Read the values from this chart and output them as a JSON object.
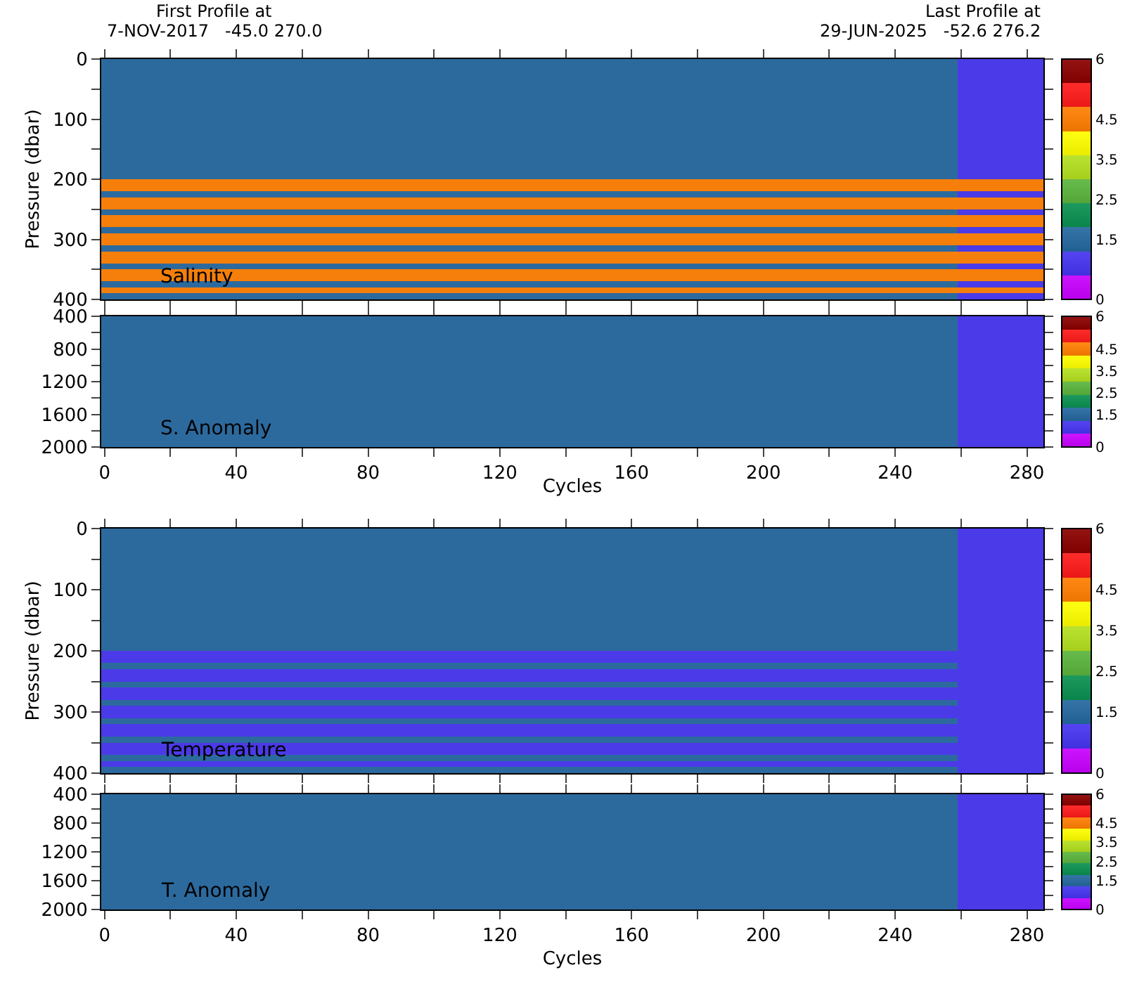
{
  "chart_data": [
    {
      "type": "heatmap",
      "ylabel": "Pressure (dbar)",
      "annotations": [
        "Salinity",
        "First Profile at",
        "7-NOV-2017   -45.0 270.0",
        "Last Profile at",
        "29-JUN-2025   -52.6 276.2"
      ],
      "x": [
        12,
        38,
        64,
        90,
        116,
        142,
        168,
        194,
        220,
        246,
        272
      ],
      "y": [
        5,
        15,
        25,
        35,
        45,
        55,
        65,
        75,
        85,
        95,
        105,
        115,
        125,
        135,
        145,
        155,
        165,
        175,
        185,
        195,
        205,
        215,
        225,
        235,
        245,
        255,
        265,
        275,
        285,
        295,
        305,
        315,
        325,
        335,
        345,
        355,
        365,
        375,
        385,
        395
      ],
      "cells": [
        [
          1.5,
          1.5,
          1.5,
          1.5,
          1.5,
          1.5,
          1.5,
          1.5,
          1.5,
          1.5,
          0.9
        ],
        [
          1.5,
          1.5,
          1.5,
          1.5,
          1.5,
          1.5,
          1.5,
          1.5,
          1.5,
          1.5,
          0.9
        ],
        [
          1.5,
          1.5,
          1.5,
          1.5,
          1.5,
          1.5,
          1.5,
          1.5,
          1.5,
          1.5,
          0.9
        ],
        [
          1.5,
          1.5,
          1.5,
          1.5,
          1.5,
          1.5,
          1.5,
          1.5,
          1.5,
          1.5,
          0.9
        ],
        [
          1.5,
          1.5,
          1.5,
          1.5,
          1.5,
          1.5,
          1.5,
          1.5,
          1.5,
          1.5,
          0.9
        ],
        [
          1.5,
          1.5,
          1.5,
          1.5,
          1.5,
          1.5,
          1.5,
          1.5,
          1.5,
          1.5,
          0.9
        ],
        [
          1.5,
          1.5,
          1.5,
          1.5,
          1.5,
          1.5,
          1.5,
          1.5,
          1.5,
          1.5,
          0.9
        ],
        [
          1.5,
          1.5,
          1.5,
          1.5,
          1.5,
          1.5,
          1.5,
          1.5,
          1.5,
          1.5,
          0.9
        ],
        [
          1.5,
          1.5,
          1.5,
          1.5,
          1.5,
          1.5,
          1.5,
          1.5,
          1.5,
          1.5,
          0.9
        ],
        [
          1.5,
          1.5,
          1.5,
          1.5,
          1.5,
          1.5,
          1.5,
          1.5,
          1.5,
          1.5,
          0.9
        ],
        [
          1.5,
          1.5,
          1.5,
          1.5,
          1.5,
          1.5,
          1.5,
          1.5,
          1.5,
          1.5,
          0.9
        ],
        [
          1.5,
          1.5,
          1.5,
          1.5,
          1.5,
          1.5,
          1.5,
          1.5,
          1.5,
          1.5,
          0.9
        ],
        [
          1.5,
          1.5,
          1.5,
          1.5,
          1.5,
          1.5,
          1.5,
          1.5,
          1.5,
          1.5,
          0.9
        ],
        [
          1.5,
          1.5,
          1.5,
          1.5,
          1.5,
          1.5,
          1.5,
          1.5,
          1.5,
          1.5,
          0.9
        ],
        [
          1.5,
          1.5,
          1.5,
          1.5,
          1.5,
          1.5,
          1.5,
          1.5,
          1.5,
          1.5,
          0.9
        ],
        [
          1.5,
          1.5,
          1.5,
          1.5,
          1.5,
          1.5,
          1.5,
          1.5,
          1.5,
          1.5,
          0.9
        ],
        [
          1.5,
          1.5,
          1.5,
          1.5,
          1.5,
          1.5,
          1.5,
          1.5,
          1.5,
          1.5,
          0.9
        ],
        [
          1.5,
          1.5,
          1.5,
          1.5,
          1.5,
          1.5,
          1.5,
          1.5,
          1.5,
          1.5,
          0.9
        ],
        [
          1.5,
          1.5,
          1.5,
          1.5,
          1.5,
          1.5,
          1.5,
          1.5,
          1.5,
          1.5,
          0.9
        ],
        [
          1.5,
          1.5,
          1.5,
          1.5,
          1.5,
          1.5,
          1.5,
          1.5,
          1.5,
          1.5,
          0.9
        ],
        [
          4.5,
          4.5,
          4.5,
          4.5,
          4.5,
          4.5,
          4.5,
          4.5,
          4.5,
          4.5,
          4.5
        ],
        [
          4.5,
          4.5,
          4.5,
          4.5,
          4.5,
          4.5,
          4.5,
          4.5,
          4.5,
          4.5,
          4.5
        ],
        [
          1.5,
          1.5,
          1.5,
          1.5,
          1.5,
          1.5,
          1.5,
          1.5,
          1.5,
          1.5,
          0.9
        ],
        [
          4.5,
          4.5,
          4.5,
          4.5,
          4.5,
          4.5,
          4.5,
          4.5,
          4.5,
          4.5,
          4.5
        ],
        [
          4.5,
          4.5,
          4.5,
          4.5,
          4.5,
          4.5,
          4.5,
          4.5,
          4.5,
          4.5,
          4.5
        ],
        [
          1.5,
          1.5,
          1.5,
          1.5,
          1.5,
          1.5,
          1.5,
          1.5,
          1.5,
          1.5,
          0.9
        ],
        [
          4.5,
          4.5,
          4.5,
          4.5,
          4.5,
          4.5,
          4.5,
          4.5,
          4.5,
          4.5,
          4.5
        ],
        [
          4.5,
          4.5,
          4.5,
          4.5,
          4.5,
          4.5,
          4.5,
          4.5,
          4.5,
          4.5,
          4.5
        ],
        [
          1.5,
          1.5,
          1.5,
          1.5,
          1.5,
          1.5,
          1.5,
          1.5,
          1.5,
          1.5,
          0.9
        ],
        [
          4.5,
          4.5,
          4.5,
          4.5,
          4.5,
          4.5,
          4.5,
          4.5,
          4.5,
          4.5,
          4.5
        ],
        [
          4.5,
          4.5,
          4.5,
          4.5,
          4.5,
          4.5,
          4.5,
          4.5,
          4.5,
          4.5,
          4.5
        ],
        [
          1.5,
          1.5,
          1.5,
          1.5,
          1.5,
          1.5,
          1.5,
          1.5,
          1.5,
          1.5,
          0.9
        ],
        [
          4.5,
          4.5,
          4.5,
          4.5,
          4.5,
          4.5,
          4.5,
          4.5,
          4.5,
          4.5,
          4.5
        ],
        [
          4.5,
          4.5,
          4.5,
          4.5,
          4.5,
          4.5,
          4.5,
          4.5,
          4.5,
          4.5,
          4.5
        ],
        [
          1.5,
          1.5,
          1.5,
          1.5,
          1.5,
          1.5,
          1.5,
          1.5,
          1.5,
          1.5,
          0.9
        ],
        [
          4.5,
          4.5,
          4.5,
          4.5,
          4.5,
          4.5,
          4.5,
          4.5,
          4.5,
          4.5,
          4.5
        ],
        [
          4.5,
          4.5,
          4.5,
          4.5,
          4.5,
          4.5,
          4.5,
          4.5,
          4.5,
          4.5,
          4.5
        ],
        [
          1.5,
          1.5,
          1.5,
          1.5,
          1.5,
          1.5,
          1.5,
          1.5,
          1.5,
          1.5,
          0.9
        ],
        [
          4.5,
          4.5,
          4.5,
          4.5,
          4.5,
          4.5,
          4.5,
          4.5,
          4.5,
          4.5,
          4.5
        ],
        [
          1.5,
          1.5,
          1.5,
          1.5,
          1.5,
          1.5,
          1.5,
          1.5,
          1.5,
          1.5,
          0.9
        ]
      ],
      "colors": [
        "#c800ff",
        "#4634f0",
        "#2468a0",
        "#0a9050",
        "#5ab43c",
        "#b4e01e",
        "#ffff00",
        "#ff7f00",
        "#ff1a1a",
        "#8b0000"
      ],
      "clim": [
        0,
        6
      ],
      "cticks": [
        0,
        1.5,
        2.5,
        3.5,
        4.5,
        6
      ],
      "xlim": [
        -1,
        285
      ],
      "xticks": [
        0,
        {
          "value": 20,
          "label": null
        },
        40,
        {
          "value": 60,
          "label": null
        },
        80,
        {
          "value": 100,
          "label": null
        },
        120,
        {
          "value": 140,
          "label": null
        },
        160,
        {
          "value": 180,
          "label": null
        },
        200,
        {
          "value": 220,
          "label": null
        },
        240,
        {
          "value": 260,
          "label": null
        },
        280
      ],
      "ylim": [
        400,
        0
      ],
      "yticks": [
        0,
        {
          "value": 50,
          "label": null
        },
        100,
        {
          "value": 150,
          "label": null
        },
        200,
        {
          "value": 250,
          "label": null
        },
        300,
        {
          "value": 350,
          "label": null
        },
        400
      ],
      "tick_labels": "y"
    },
    {
      "type": "heatmap",
      "xlabel": "Cycles",
      "annotations": [
        "S. Anomaly"
      ],
      "x": [
        12,
        38,
        64,
        90,
        116,
        142,
        168,
        194,
        220,
        246,
        272
      ],
      "y": [
        450,
        550,
        650,
        750,
        850,
        950,
        1050,
        1150,
        1250,
        1350,
        1450,
        1550,
        1650,
        1750,
        1850,
        1950
      ],
      "cells": [
        [
          1.5,
          1.5,
          1.5,
          1.5,
          1.5,
          1.5,
          1.5,
          1.5,
          1.5,
          1.5,
          0.9
        ],
        [
          1.5,
          1.5,
          1.5,
          1.5,
          1.5,
          1.5,
          1.5,
          1.5,
          1.5,
          1.5,
          0.9
        ],
        [
          1.5,
          1.5,
          1.5,
          1.5,
          1.5,
          1.5,
          1.5,
          1.5,
          1.5,
          1.5,
          0.9
        ],
        [
          1.5,
          1.5,
          1.5,
          1.5,
          1.5,
          1.5,
          1.5,
          1.5,
          1.5,
          1.5,
          0.9
        ],
        [
          1.5,
          1.5,
          1.5,
          1.5,
          1.5,
          1.5,
          1.5,
          1.5,
          1.5,
          1.5,
          0.9
        ],
        [
          1.5,
          1.5,
          1.5,
          1.5,
          1.5,
          1.5,
          1.5,
          1.5,
          1.5,
          1.5,
          0.9
        ],
        [
          1.5,
          1.5,
          1.5,
          1.5,
          1.5,
          1.5,
          1.5,
          1.5,
          1.5,
          1.5,
          0.9
        ],
        [
          1.5,
          1.5,
          1.5,
          1.5,
          1.5,
          1.5,
          1.5,
          1.5,
          1.5,
          1.5,
          0.9
        ],
        [
          1.5,
          1.5,
          1.5,
          1.5,
          1.5,
          1.5,
          1.5,
          1.5,
          1.5,
          1.5,
          0.9
        ],
        [
          1.5,
          1.5,
          1.5,
          1.5,
          1.5,
          1.5,
          1.5,
          1.5,
          1.5,
          1.5,
          0.9
        ],
        [
          1.5,
          1.5,
          1.5,
          1.5,
          1.5,
          1.5,
          1.5,
          1.5,
          1.5,
          1.5,
          0.9
        ],
        [
          1.5,
          1.5,
          1.5,
          1.5,
          1.5,
          1.5,
          1.5,
          1.5,
          1.5,
          1.5,
          0.9
        ],
        [
          1.5,
          1.5,
          1.5,
          1.5,
          1.5,
          1.5,
          1.5,
          1.5,
          1.5,
          1.5,
          0.9
        ],
        [
          1.5,
          1.5,
          1.5,
          1.5,
          1.5,
          1.5,
          1.5,
          1.5,
          1.5,
          1.5,
          0.9
        ],
        [
          1.5,
          1.5,
          1.5,
          1.5,
          1.5,
          1.5,
          1.5,
          1.5,
          1.5,
          1.5,
          0.9
        ],
        [
          1.5,
          1.5,
          1.5,
          1.5,
          1.5,
          1.5,
          1.5,
          1.5,
          1.5,
          1.5,
          0.9
        ]
      ],
      "colors": [
        "#c800ff",
        "#4634f0",
        "#2468a0",
        "#0a9050",
        "#5ab43c",
        "#b4e01e",
        "#ffff00",
        "#ff7f00",
        "#ff1a1a",
        "#8b0000"
      ],
      "clim": [
        0,
        6
      ],
      "cticks": [
        0,
        1.5,
        2.5,
        3.5,
        4.5,
        6
      ],
      "xlim": [
        -1,
        285
      ],
      "xticks": [
        0,
        {
          "value": 20,
          "label": null
        },
        40,
        {
          "value": 60,
          "label": null
        },
        80,
        {
          "value": 100,
          "label": null
        },
        120,
        {
          "value": 140,
          "label": null
        },
        160,
        {
          "value": 180,
          "label": null
        },
        200,
        {
          "value": 220,
          "label": null
        },
        240,
        {
          "value": 260,
          "label": null
        },
        280
      ],
      "ylim": [
        2000,
        400
      ],
      "yticks": [
        400,
        {
          "value": 600,
          "label": null
        },
        800,
        {
          "value": 1000,
          "label": null
        },
        1200,
        {
          "value": 1400,
          "label": null
        },
        1600,
        {
          "value": 1800,
          "label": null
        },
        2000
      ]
    },
    {
      "type": "heatmap",
      "ylabel": "Pressure (dbar)",
      "annotations": [
        "Temperature"
      ],
      "x": [
        12,
        38,
        64,
        90,
        116,
        142,
        168,
        194,
        220,
        246,
        272
      ],
      "y": [
        5,
        15,
        25,
        35,
        45,
        55,
        65,
        75,
        85,
        95,
        105,
        115,
        125,
        135,
        145,
        155,
        165,
        175,
        185,
        195,
        205,
        215,
        225,
        235,
        245,
        255,
        265,
        275,
        285,
        295,
        305,
        315,
        325,
        335,
        345,
        355,
        365,
        375,
        385,
        395
      ],
      "cells": [
        [
          1.5,
          1.5,
          1.5,
          1.5,
          1.5,
          1.5,
          1.5,
          1.5,
          1.5,
          1.5,
          0.9
        ],
        [
          1.5,
          1.5,
          1.5,
          1.5,
          1.5,
          1.5,
          1.5,
          1.5,
          1.5,
          1.5,
          0.9
        ],
        [
          1.5,
          1.5,
          1.5,
          1.5,
          1.5,
          1.5,
          1.5,
          1.5,
          1.5,
          1.5,
          0.9
        ],
        [
          1.5,
          1.5,
          1.5,
          1.5,
          1.5,
          1.5,
          1.5,
          1.5,
          1.5,
          1.5,
          0.9
        ],
        [
          1.5,
          1.5,
          1.5,
          1.5,
          1.5,
          1.5,
          1.5,
          1.5,
          1.5,
          1.5,
          0.9
        ],
        [
          1.5,
          1.5,
          1.5,
          1.5,
          1.5,
          1.5,
          1.5,
          1.5,
          1.5,
          1.5,
          0.9
        ],
        [
          1.5,
          1.5,
          1.5,
          1.5,
          1.5,
          1.5,
          1.5,
          1.5,
          1.5,
          1.5,
          0.9
        ],
        [
          1.5,
          1.5,
          1.5,
          1.5,
          1.5,
          1.5,
          1.5,
          1.5,
          1.5,
          1.5,
          0.9
        ],
        [
          1.5,
          1.5,
          1.5,
          1.5,
          1.5,
          1.5,
          1.5,
          1.5,
          1.5,
          1.5,
          0.9
        ],
        [
          1.5,
          1.5,
          1.5,
          1.5,
          1.5,
          1.5,
          1.5,
          1.5,
          1.5,
          1.5,
          0.9
        ],
        [
          1.5,
          1.5,
          1.5,
          1.5,
          1.5,
          1.5,
          1.5,
          1.5,
          1.5,
          1.5,
          0.9
        ],
        [
          1.5,
          1.5,
          1.5,
          1.5,
          1.5,
          1.5,
          1.5,
          1.5,
          1.5,
          1.5,
          0.9
        ],
        [
          1.5,
          1.5,
          1.5,
          1.5,
          1.5,
          1.5,
          1.5,
          1.5,
          1.5,
          1.5,
          0.9
        ],
        [
          1.5,
          1.5,
          1.5,
          1.5,
          1.5,
          1.5,
          1.5,
          1.5,
          1.5,
          1.5,
          0.9
        ],
        [
          1.5,
          1.5,
          1.5,
          1.5,
          1.5,
          1.5,
          1.5,
          1.5,
          1.5,
          1.5,
          0.9
        ],
        [
          1.5,
          1.5,
          1.5,
          1.5,
          1.5,
          1.5,
          1.5,
          1.5,
          1.5,
          1.5,
          0.9
        ],
        [
          1.5,
          1.5,
          1.5,
          1.5,
          1.5,
          1.5,
          1.5,
          1.5,
          1.5,
          1.5,
          0.9
        ],
        [
          1.5,
          1.5,
          1.5,
          1.5,
          1.5,
          1.5,
          1.5,
          1.5,
          1.5,
          1.5,
          0.9
        ],
        [
          1.5,
          1.5,
          1.5,
          1.5,
          1.5,
          1.5,
          1.5,
          1.5,
          1.5,
          1.5,
          0.9
        ],
        [
          1.5,
          1.5,
          1.5,
          1.5,
          1.5,
          1.5,
          1.5,
          1.5,
          1.5,
          1.5,
          0.9
        ],
        [
          0.9,
          0.9,
          0.9,
          0.9,
          0.9,
          0.9,
          0.9,
          0.9,
          0.9,
          0.9,
          0.9
        ],
        [
          0.9,
          0.9,
          0.9,
          0.9,
          0.9,
          0.9,
          0.9,
          0.9,
          0.9,
          0.9,
          0.9
        ],
        [
          1.5,
          1.5,
          1.5,
          1.5,
          1.5,
          1.5,
          1.5,
          1.5,
          1.5,
          1.5,
          0.9
        ],
        [
          0.9,
          0.9,
          0.9,
          0.9,
          0.9,
          0.9,
          0.9,
          0.9,
          0.9,
          0.9,
          0.9
        ],
        [
          0.9,
          0.9,
          0.9,
          0.9,
          0.9,
          0.9,
          0.9,
          0.9,
          0.9,
          0.9,
          0.9
        ],
        [
          1.5,
          1.5,
          1.5,
          1.5,
          1.5,
          1.5,
          1.5,
          1.5,
          1.5,
          1.5,
          0.9
        ],
        [
          0.9,
          0.9,
          0.9,
          0.9,
          0.9,
          0.9,
          0.9,
          0.9,
          0.9,
          0.9,
          0.9
        ],
        [
          0.9,
          0.9,
          0.9,
          0.9,
          0.9,
          0.9,
          0.9,
          0.9,
          0.9,
          0.9,
          0.9
        ],
        [
          1.5,
          1.5,
          1.5,
          1.5,
          1.5,
          1.5,
          1.5,
          1.5,
          1.5,
          1.5,
          0.9
        ],
        [
          0.9,
          0.9,
          0.9,
          0.9,
          0.9,
          0.9,
          0.9,
          0.9,
          0.9,
          0.9,
          0.9
        ],
        [
          0.9,
          0.9,
          0.9,
          0.9,
          0.9,
          0.9,
          0.9,
          0.9,
          0.9,
          0.9,
          0.9
        ],
        [
          1.5,
          1.5,
          1.5,
          1.5,
          1.5,
          1.5,
          1.5,
          1.5,
          1.5,
          1.5,
          0.9
        ],
        [
          0.9,
          0.9,
          0.9,
          0.9,
          0.9,
          0.9,
          0.9,
          0.9,
          0.9,
          0.9,
          0.9
        ],
        [
          0.9,
          0.9,
          0.9,
          0.9,
          0.9,
          0.9,
          0.9,
          0.9,
          0.9,
          0.9,
          0.9
        ],
        [
          1.5,
          1.5,
          1.5,
          1.5,
          1.5,
          1.5,
          1.5,
          1.5,
          1.5,
          1.5,
          0.9
        ],
        [
          0.9,
          0.9,
          0.9,
          0.9,
          0.9,
          0.9,
          0.9,
          0.9,
          0.9,
          0.9,
          0.9
        ],
        [
          0.9,
          0.9,
          0.9,
          0.9,
          0.9,
          0.9,
          0.9,
          0.9,
          0.9,
          0.9,
          0.9
        ],
        [
          1.5,
          1.5,
          1.5,
          1.5,
          1.5,
          1.5,
          1.5,
          1.5,
          1.5,
          1.5,
          0.9
        ],
        [
          0.9,
          0.9,
          0.9,
          0.9,
          0.9,
          0.9,
          0.9,
          0.9,
          0.9,
          0.9,
          0.9
        ],
        [
          1.5,
          1.5,
          1.5,
          1.5,
          1.5,
          1.5,
          1.5,
          1.5,
          1.5,
          1.5,
          0.9
        ]
      ],
      "colors": [
        "#c800ff",
        "#4634f0",
        "#2468a0",
        "#0a9050",
        "#5ab43c",
        "#b4e01e",
        "#ffff00",
        "#ff7f00",
        "#ff1a1a",
        "#8b0000"
      ],
      "clim": [
        0,
        6
      ],
      "cticks": [
        0,
        1.5,
        2.5,
        3.5,
        4.5,
        6
      ],
      "xlim": [
        -1,
        285
      ],
      "xticks": [
        0,
        {
          "value": 20,
          "label": null
        },
        40,
        {
          "value": 60,
          "label": null
        },
        80,
        {
          "value": 100,
          "label": null
        },
        120,
        {
          "value": 140,
          "label": null
        },
        160,
        {
          "value": 180,
          "label": null
        },
        200,
        {
          "value": 220,
          "label": null
        },
        240,
        {
          "value": 260,
          "label": null
        },
        280
      ],
      "ylim": [
        400,
        0
      ],
      "yticks": [
        0,
        {
          "value": 50,
          "label": null
        },
        100,
        {
          "value": 150,
          "label": null
        },
        200,
        {
          "value": 250,
          "label": null
        },
        300,
        {
          "value": 350,
          "label": null
        },
        400
      ],
      "tick_labels": "y"
    },
    {
      "type": "heatmap",
      "xlabel": "Cycles",
      "annotations": [
        "T. Anomaly"
      ],
      "x": [
        12,
        38,
        64,
        90,
        116,
        142,
        168,
        194,
        220,
        246,
        272
      ],
      "y": [
        450,
        550,
        650,
        750,
        850,
        950,
        1050,
        1150,
        1250,
        1350,
        1450,
        1550,
        1650,
        1750,
        1850,
        1950
      ],
      "cells": [
        [
          1.5,
          1.5,
          1.5,
          1.5,
          1.5,
          1.5,
          1.5,
          1.5,
          1.5,
          1.5,
          0.9
        ],
        [
          1.5,
          1.5,
          1.5,
          1.5,
          1.5,
          1.5,
          1.5,
          1.5,
          1.5,
          1.5,
          0.9
        ],
        [
          1.5,
          1.5,
          1.5,
          1.5,
          1.5,
          1.5,
          1.5,
          1.5,
          1.5,
          1.5,
          0.9
        ],
        [
          1.5,
          1.5,
          1.5,
          1.5,
          1.5,
          1.5,
          1.5,
          1.5,
          1.5,
          1.5,
          0.9
        ],
        [
          1.5,
          1.5,
          1.5,
          1.5,
          1.5,
          1.5,
          1.5,
          1.5,
          1.5,
          1.5,
          0.9
        ],
        [
          1.5,
          1.5,
          1.5,
          1.5,
          1.5,
          1.5,
          1.5,
          1.5,
          1.5,
          1.5,
          0.9
        ],
        [
          1.5,
          1.5,
          1.5,
          1.5,
          1.5,
          1.5,
          1.5,
          1.5,
          1.5,
          1.5,
          0.9
        ],
        [
          1.5,
          1.5,
          1.5,
          1.5,
          1.5,
          1.5,
          1.5,
          1.5,
          1.5,
          1.5,
          0.9
        ],
        [
          1.5,
          1.5,
          1.5,
          1.5,
          1.5,
          1.5,
          1.5,
          1.5,
          1.5,
          1.5,
          0.9
        ],
        [
          1.5,
          1.5,
          1.5,
          1.5,
          1.5,
          1.5,
          1.5,
          1.5,
          1.5,
          1.5,
          0.9
        ],
        [
          1.5,
          1.5,
          1.5,
          1.5,
          1.5,
          1.5,
          1.5,
          1.5,
          1.5,
          1.5,
          0.9
        ],
        [
          1.5,
          1.5,
          1.5,
          1.5,
          1.5,
          1.5,
          1.5,
          1.5,
          1.5,
          1.5,
          0.9
        ],
        [
          1.5,
          1.5,
          1.5,
          1.5,
          1.5,
          1.5,
          1.5,
          1.5,
          1.5,
          1.5,
          0.9
        ],
        [
          1.5,
          1.5,
          1.5,
          1.5,
          1.5,
          1.5,
          1.5,
          1.5,
          1.5,
          1.5,
          0.9
        ],
        [
          1.5,
          1.5,
          1.5,
          1.5,
          1.5,
          1.5,
          1.5,
          1.5,
          1.5,
          1.5,
          0.9
        ],
        [
          1.5,
          1.5,
          1.5,
          1.5,
          1.5,
          1.5,
          1.5,
          1.5,
          1.5,
          1.5,
          0.9
        ]
      ],
      "colors": [
        "#c800ff",
        "#4634f0",
        "#2468a0",
        "#0a9050",
        "#5ab43c",
        "#b4e01e",
        "#ffff00",
        "#ff7f00",
        "#ff1a1a",
        "#8b0000"
      ],
      "clim": [
        0,
        6
      ],
      "cticks": [
        0,
        1.5,
        2.5,
        3.5,
        4.5,
        6
      ],
      "xlim": [
        -1,
        285
      ],
      "xticks": [
        0,
        {
          "value": 20,
          "label": null
        },
        40,
        {
          "value": 60,
          "label": null
        },
        80,
        {
          "value": 100,
          "label": null
        },
        120,
        {
          "value": 140,
          "label": null
        },
        160,
        {
          "value": 180,
          "label": null
        },
        200,
        {
          "value": 220,
          "label": null
        },
        240,
        {
          "value": 260,
          "label": null
        },
        280
      ],
      "ylim": [
        2000,
        400
      ],
      "yticks": [
        400,
        {
          "value": 600,
          "label": null
        },
        800,
        {
          "value": 1000,
          "label": null
        },
        1200,
        {
          "value": 1400,
          "label": null
        },
        1600,
        {
          "value": 1800,
          "label": null
        },
        2000
      ]
    }
  ]
}
